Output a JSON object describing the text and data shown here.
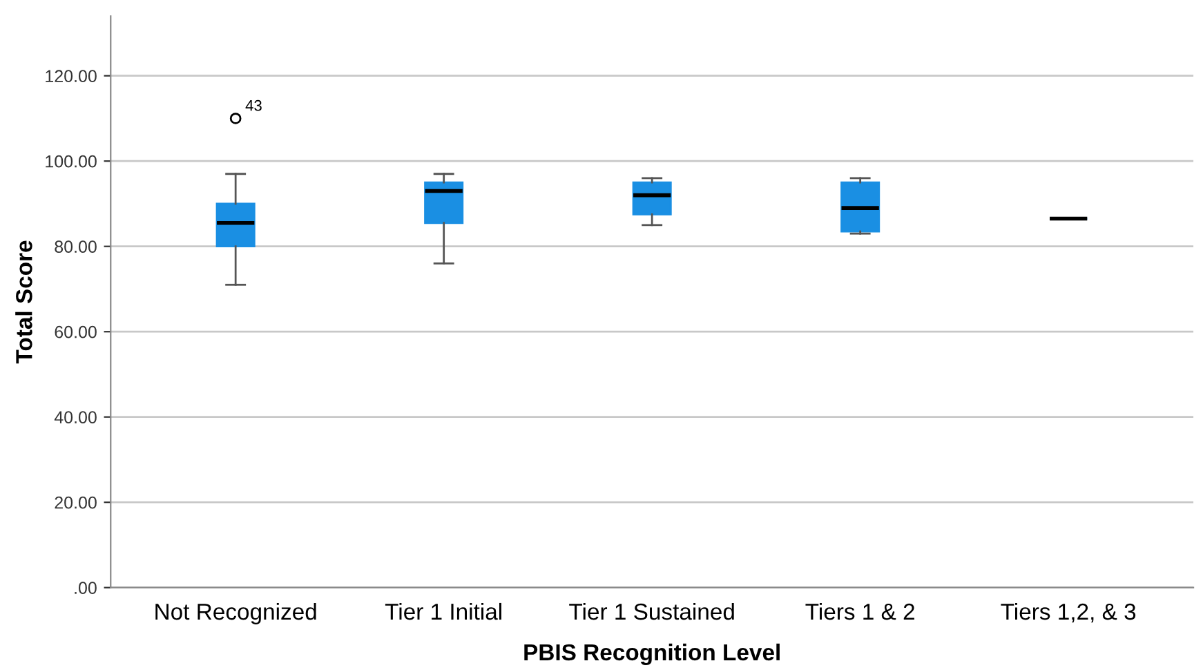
{
  "chart_data": {
    "type": "box",
    "xlabel": "PBIS Recognition Level",
    "ylabel": "Total Score",
    "categories": [
      "Not Recognized",
      "Tier 1 Initial",
      "Tier 1 Sustained",
      "Tiers 1 & 2",
      "Tiers 1,2, & 3"
    ],
    "color": "#1a8fe3",
    "boxes": [
      {
        "low": 71,
        "q1": 80,
        "median": 85.5,
        "q3": 90,
        "high": 97,
        "outliers": [
          110
        ]
      },
      {
        "low": 76,
        "q1": 85.5,
        "median": 93,
        "q3": 95,
        "high": 97
      },
      {
        "low": 85,
        "q1": 87.5,
        "median": 92,
        "q3": 95,
        "high": 96
      },
      {
        "low": 83,
        "q1": 83.5,
        "median": 89,
        "q3": 95,
        "high": 96
      },
      {
        "low": 86.5,
        "q1": 86.5,
        "median": 86.5,
        "q3": 86.5,
        "high": 86.5
      }
    ],
    "annotations": [
      "43"
    ],
    "ylim": [
      0,
      134
    ],
    "yticks": [
      {
        "value": 0,
        "label": ".00"
      },
      {
        "value": 20,
        "label": "20.00"
      },
      {
        "value": 40,
        "label": "40.00"
      },
      {
        "value": 60,
        "label": "60.00"
      },
      {
        "value": 80,
        "label": "80.00"
      },
      {
        "value": 100,
        "label": "100.00"
      },
      {
        "value": 120,
        "label": "120.00"
      }
    ],
    "grid": "y",
    "legend": false
  }
}
